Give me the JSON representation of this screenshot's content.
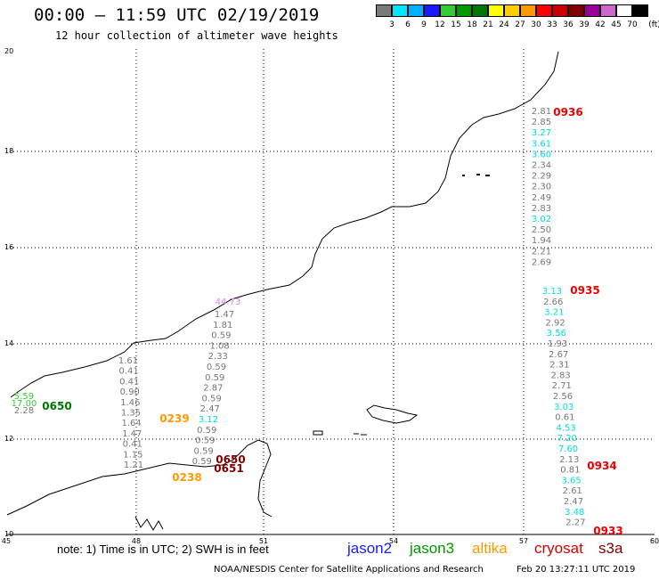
{
  "header": {
    "title": "00:00 – 11:59 UTC 02/19/2019",
    "subtitle": "12 hour collection of altimeter wave heights"
  },
  "legend": {
    "swatches": [
      {
        "color": "#7a7a7a",
        "label": "3"
      },
      {
        "color": "#00e5ff",
        "label": "6"
      },
      {
        "color": "#00b0ff",
        "label": "9"
      },
      {
        "color": "#1a1aff",
        "label": "12"
      },
      {
        "color": "#33cc33",
        "label": "15"
      },
      {
        "color": "#009900",
        "label": "18"
      },
      {
        "color": "#007700",
        "label": "21"
      },
      {
        "color": "#ffff00",
        "label": "24"
      },
      {
        "color": "#ffcc00",
        "label": "27"
      },
      {
        "color": "#ff9900",
        "label": "30"
      },
      {
        "color": "#ff0000",
        "label": "33"
      },
      {
        "color": "#cc0000",
        "label": "36"
      },
      {
        "color": "#800000",
        "label": "39"
      },
      {
        "color": "#990099",
        "label": "42"
      },
      {
        "color": "#cc66cc",
        "label": "45"
      },
      {
        "color": "#ffffff",
        "label": "70"
      },
      {
        "color": "#000000",
        "label": ""
      }
    ],
    "unit": "(ft)"
  },
  "axes": {
    "x_ticks": [
      "45",
      "48",
      "51",
      "54",
      "57",
      "60"
    ],
    "y_ticks": [
      "20",
      "18",
      "16",
      "14",
      "12",
      "10"
    ]
  },
  "times": [
    {
      "text": "0936",
      "color": "#ee0000"
    },
    {
      "text": "0935",
      "color": "#ee0000"
    },
    {
      "text": "0934",
      "color": "#ee0000"
    },
    {
      "text": "0933",
      "color": "#ee0000"
    },
    {
      "text": "0650",
      "color": "#007700"
    },
    {
      "text": "0239",
      "color": "#ff9900"
    },
    {
      "text": "0238",
      "color": "#ff9900"
    },
    {
      "text": "0650",
      "color": "#800000"
    },
    {
      "text": "0651",
      "color": "#800000"
    }
  ],
  "track_east": {
    "values": [
      "2.81",
      "2.85",
      "3.27",
      "3.61",
      "3.60",
      "2.34",
      "2.29",
      "2.30",
      "2.49",
      "2.83",
      "3.02",
      "2.50",
      "1.94",
      "2.21",
      "2.69"
    ],
    "colors": [
      "g",
      "g",
      "c",
      "c",
      "c",
      "g",
      "g",
      "g",
      "g",
      "g",
      "c",
      "g",
      "g",
      "g",
      "g"
    ]
  },
  "track_east2": {
    "values": [
      "3.13",
      "2.66",
      "3.21",
      "2.92",
      "3.56",
      "1.93",
      "2.67",
      "2.31",
      "2.83",
      "2.71",
      "2.56",
      "3.03",
      "0.61",
      "4.53",
      "7.20",
      "7.60",
      "2.13",
      "0.81",
      "3.65",
      "2.61",
      "2.47",
      "3.48",
      "2.27"
    ],
    "colors": [
      "c",
      "g",
      "c",
      "g",
      "c",
      "g",
      "g",
      "g",
      "g",
      "g",
      "g",
      "c",
      "g",
      "c",
      "c",
      "c",
      "g",
      "g",
      "c",
      "g",
      "g",
      "c",
      "g"
    ]
  },
  "track_mid": {
    "values": [
      "1.47",
      "1.81",
      "0.59",
      "1.08",
      "2.33",
      "0.59",
      "0.59",
      "2.87",
      "0.59",
      "2.47",
      "3.12",
      "0.59",
      "0.59",
      "0.59",
      "0.59"
    ],
    "colors": [
      "g",
      "g",
      "g",
      "g",
      "g",
      "g",
      "g",
      "g",
      "g",
      "g",
      "c",
      "g",
      "g",
      "g",
      "g"
    ],
    "top": "44.73"
  },
  "track_west": {
    "values": [
      "1.61",
      "0.41",
      "0.41",
      "0.90",
      "1.46",
      "1.35",
      "1.64",
      "1.47",
      "0.41",
      "1.15",
      "1.21"
    ]
  },
  "track_far": {
    "values": [
      "5.59",
      "17.00",
      "2.28"
    ]
  },
  "footer": {
    "note": "note: 1) Time is in UTC; 2) SWH is in feet",
    "sats": [
      {
        "name": "jason2",
        "color": "#1a1aff"
      },
      {
        "name": "jason3",
        "color": "#009900"
      },
      {
        "name": "altika",
        "color": "#ff9900"
      },
      {
        "name": "cryosat",
        "color": "#dd0000"
      },
      {
        "name": "s3a",
        "color": "#800000"
      }
    ],
    "credit": "NOAA/NESDIS Center for Satellite Applications and Research",
    "stamp": "Feb 20 13:27:11 UTC 2019"
  }
}
